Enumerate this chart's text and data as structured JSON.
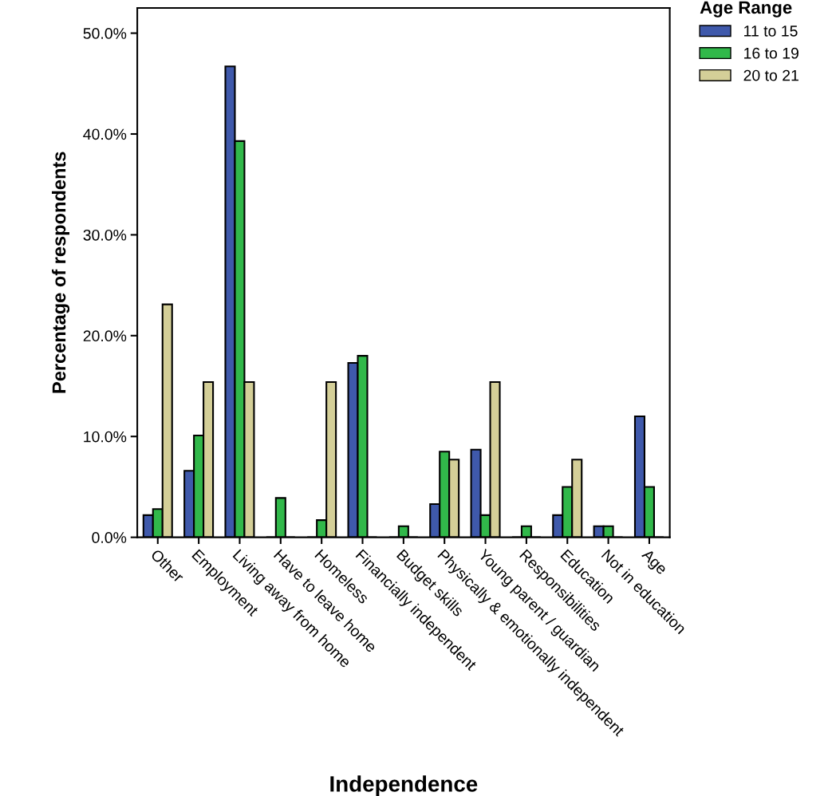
{
  "chart_data": {
    "type": "bar",
    "xlabel": "Independence",
    "ylabel": "Percentage of respondents",
    "legend_title": "Age Range",
    "categories": [
      "Other",
      "Employment",
      "Living away from home",
      "Have to leave home",
      "Homeless",
      "Financially independent",
      "Budget skills",
      "Physically & emotionally independent",
      "Young parent / guardian",
      "Responsibilities",
      "Education",
      "Not in education",
      "Age"
    ],
    "series": [
      {
        "name": "11 to 15",
        "color": "#3f59ab",
        "values": [
          2.2,
          6.6,
          46.7,
          0,
          0,
          17.3,
          0,
          3.3,
          8.7,
          0,
          2.2,
          1.1,
          12.0
        ]
      },
      {
        "name": "16 to 19",
        "color": "#31b84a",
        "values": [
          2.8,
          10.1,
          39.3,
          3.9,
          1.7,
          18.0,
          1.1,
          8.5,
          2.2,
          1.1,
          5.0,
          1.1,
          5.0
        ]
      },
      {
        "name": "20 to 21",
        "color": "#d4cf98",
        "values": [
          23.1,
          15.4,
          15.4,
          0,
          15.4,
          0,
          0,
          7.7,
          15.4,
          0,
          7.7,
          0,
          0
        ]
      }
    ],
    "ylim": [
      0,
      52.5
    ],
    "yticks": [
      {
        "value": 0,
        "label": "0.0%"
      },
      {
        "value": 10,
        "label": "10.0%"
      },
      {
        "value": 20,
        "label": "20.0%"
      },
      {
        "value": 30,
        "label": "30.0%"
      },
      {
        "value": 40,
        "label": "40.0%"
      },
      {
        "value": 50,
        "label": "50.0%"
      }
    ],
    "grid": false,
    "legend": "top right"
  }
}
